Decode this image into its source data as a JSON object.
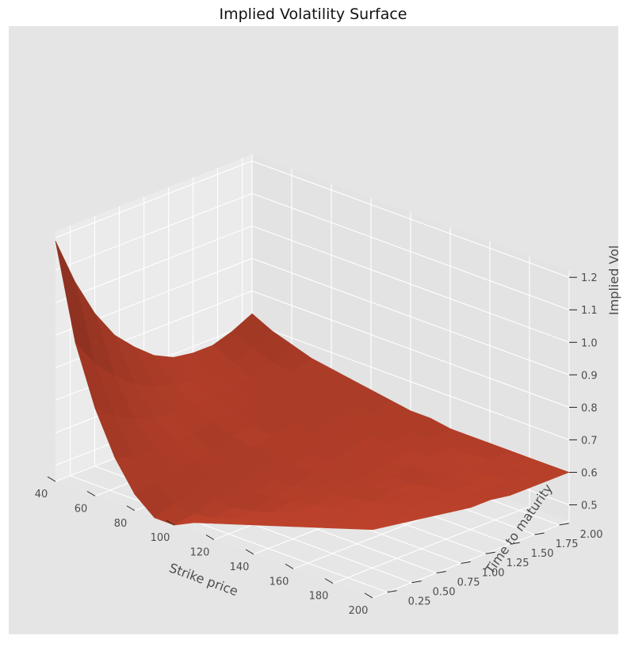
{
  "chart_data": {
    "type": "surface3d",
    "title": "Implied Volatility Surface",
    "xlabel": "Strike price",
    "ylabel": "Time to maturity",
    "zlabel": "Implied Vol",
    "xlim": [
      40,
      200
    ],
    "ylim": [
      0.1,
      2.1
    ],
    "zlim": [
      0.45,
      1.22
    ],
    "x_ticks": [
      40,
      60,
      80,
      100,
      120,
      140,
      160,
      180,
      200
    ],
    "y_ticks": [
      0.25,
      0.5,
      0.75,
      1.0,
      1.25,
      1.5,
      1.75,
      2.0
    ],
    "y_tick_labels": [
      "0.25",
      "0.50",
      "0.75",
      "1.00",
      "1.25",
      "1.50",
      "1.75",
      "2.00"
    ],
    "z_ticks": [
      0.5,
      0.6,
      0.7,
      0.8,
      0.9,
      1.0,
      1.1,
      1.2
    ],
    "z_tick_labels": [
      "0.5",
      "0.6",
      "0.7",
      "0.8",
      "0.9",
      "1.0",
      "1.1",
      "1.2"
    ],
    "strikes": [
      40,
      50,
      60,
      70,
      80,
      90,
      100,
      110,
      120,
      130,
      140,
      150,
      160,
      170,
      180,
      190,
      200
    ],
    "maturities": [
      0.1,
      0.3,
      0.5,
      0.7,
      0.9,
      1.1,
      1.3,
      1.5,
      1.7,
      1.9,
      2.1
    ],
    "implied_vol": [
      [
        1.19,
        0.9,
        0.72,
        0.59,
        0.5,
        0.45,
        0.45,
        0.48,
        0.5,
        0.52,
        0.54,
        0.56,
        0.58,
        0.6,
        0.62,
        0.64,
        0.66
      ],
      [
        1.04,
        0.81,
        0.67,
        0.57,
        0.51,
        0.47,
        0.46,
        0.47,
        0.49,
        0.51,
        0.53,
        0.55,
        0.57,
        0.59,
        0.61,
        0.63,
        0.65
      ],
      [
        0.92,
        0.75,
        0.64,
        0.57,
        0.52,
        0.49,
        0.48,
        0.48,
        0.49,
        0.51,
        0.53,
        0.55,
        0.57,
        0.58,
        0.6,
        0.62,
        0.64
      ],
      [
        0.83,
        0.7,
        0.62,
        0.57,
        0.53,
        0.51,
        0.5,
        0.5,
        0.51,
        0.52,
        0.53,
        0.55,
        0.56,
        0.58,
        0.6,
        0.61,
        0.63
      ],
      [
        0.77,
        0.67,
        0.61,
        0.57,
        0.54,
        0.53,
        0.52,
        0.52,
        0.52,
        0.53,
        0.54,
        0.55,
        0.56,
        0.58,
        0.59,
        0.61,
        0.62
      ],
      [
        0.72,
        0.65,
        0.61,
        0.58,
        0.56,
        0.55,
        0.54,
        0.54,
        0.54,
        0.54,
        0.55,
        0.56,
        0.57,
        0.58,
        0.59,
        0.6,
        0.61
      ],
      [
        0.69,
        0.64,
        0.61,
        0.59,
        0.57,
        0.56,
        0.56,
        0.55,
        0.55,
        0.56,
        0.56,
        0.57,
        0.57,
        0.58,
        0.59,
        0.6,
        0.61
      ],
      [
        0.68,
        0.64,
        0.62,
        0.6,
        0.59,
        0.58,
        0.57,
        0.57,
        0.57,
        0.57,
        0.57,
        0.58,
        0.58,
        0.59,
        0.59,
        0.6,
        0.6
      ],
      [
        0.68,
        0.65,
        0.63,
        0.62,
        0.61,
        0.6,
        0.59,
        0.59,
        0.58,
        0.58,
        0.58,
        0.58,
        0.59,
        0.59,
        0.59,
        0.6,
        0.6
      ],
      [
        0.7,
        0.67,
        0.65,
        0.64,
        0.63,
        0.62,
        0.61,
        0.6,
        0.6,
        0.59,
        0.59,
        0.59,
        0.59,
        0.59,
        0.6,
        0.6,
        0.6
      ],
      [
        0.73,
        0.7,
        0.68,
        0.66,
        0.65,
        0.64,
        0.63,
        0.62,
        0.61,
        0.61,
        0.6,
        0.6,
        0.6,
        0.6,
        0.6,
        0.6,
        0.6
      ]
    ],
    "surface_color": "#b7402a",
    "pane_color": "#e5e5e5",
    "grid": true,
    "style": "ggplot"
  }
}
